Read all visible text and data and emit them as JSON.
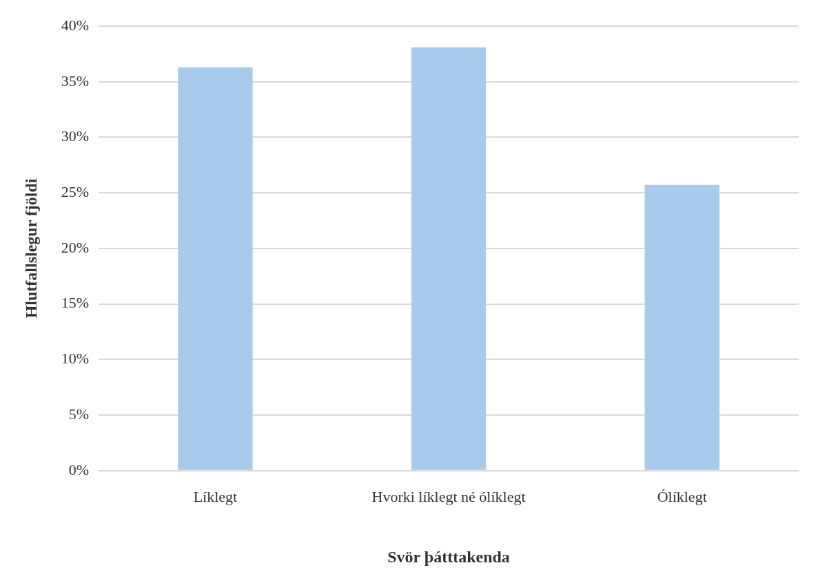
{
  "chart_data": {
    "type": "bar",
    "xlabel": "Svör þátttakenda",
    "ylabel": "Hlutfallslegur fjöldi",
    "categories": [
      "Líklegt",
      "Hvorki líklegt né ólíklegt",
      "Ólíklegt"
    ],
    "values": [
      36.3,
      38.1,
      25.7
    ],
    "color": "#a9cbeb",
    "ylim": [
      0,
      40
    ],
    "yticks": [
      {
        "value": 0,
        "label": "0%"
      },
      {
        "value": 5,
        "label": "5%"
      },
      {
        "value": 10,
        "label": "10%"
      },
      {
        "value": 15,
        "label": "15%"
      },
      {
        "value": 20,
        "label": "20%"
      },
      {
        "value": 25,
        "label": "25%"
      },
      {
        "value": 30,
        "label": "30%"
      },
      {
        "value": 35,
        "label": "35%"
      },
      {
        "value": 40,
        "label": "40%"
      }
    ],
    "grid": "y"
  }
}
